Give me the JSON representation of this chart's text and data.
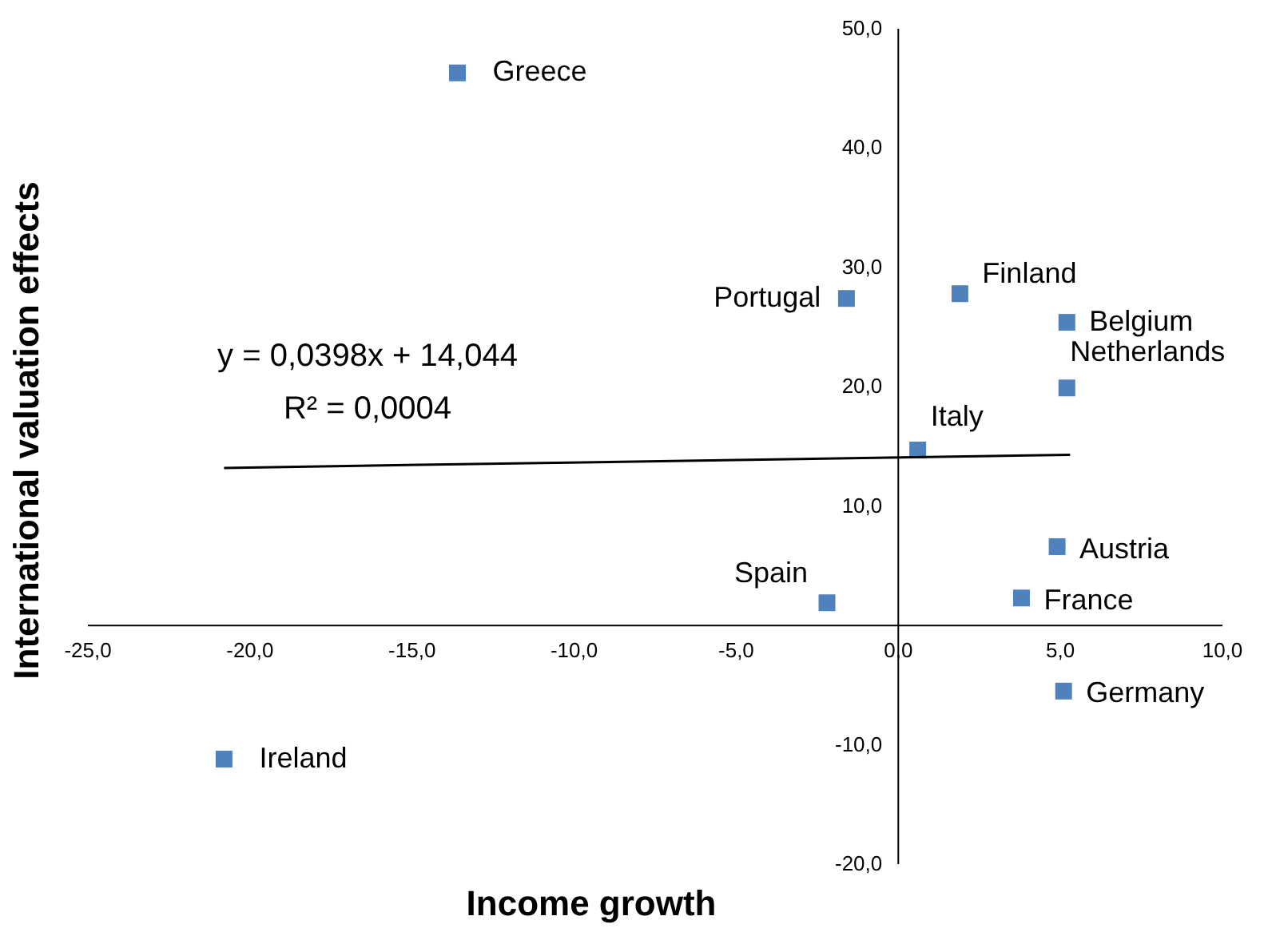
{
  "chart_data": {
    "type": "scatter",
    "xlabel": "Income growth",
    "ylabel": "International valuation effects",
    "series": [
      {
        "color": "#4f81bd",
        "marker": "square",
        "x": [
          -13.6,
          -1.6,
          1.9,
          5.2,
          5.2,
          0.6,
          4.9,
          3.8,
          -2.2,
          5.1,
          -20.8
        ],
        "values": [
          46.3,
          27.4,
          27.8,
          25.4,
          19.9,
          14.7,
          6.6,
          2.3,
          1.9,
          -5.5,
          -11.2
        ]
      },
      {
        "type": "line",
        "color": "#000000",
        "x": [
          -20.8,
          5.3
        ],
        "values": [
          13.2,
          14.3
        ]
      }
    ],
    "annotations": [
      {
        "text": "Greece",
        "x": -13.6,
        "y": 46.3
      },
      {
        "text": "Portugal",
        "x": -1.6,
        "y": 27.4
      },
      {
        "text": "Finland",
        "x": 1.9,
        "y": 27.8
      },
      {
        "text": "Belgium",
        "x": 5.2,
        "y": 25.4
      },
      {
        "text": "Netherlands",
        "x": 5.2,
        "y": 19.9
      },
      {
        "text": "Italy",
        "x": 0.6,
        "y": 14.7
      },
      {
        "text": "Austria",
        "x": 4.9,
        "y": 6.6
      },
      {
        "text": "France",
        "x": 3.8,
        "y": 2.3
      },
      {
        "text": "Spain",
        "x": -2.2,
        "y": 1.9
      },
      {
        "text": "Germany",
        "x": 5.1,
        "y": -5.5
      },
      {
        "text": "Ireland",
        "x": -20.8,
        "y": -11.2
      },
      "y = 0,0398x + 14,044",
      "R² = 0,0004"
    ],
    "xlim": [
      -25,
      10
    ],
    "xticks": [
      {
        "value": -25,
        "label": "-25,0"
      },
      {
        "value": -20,
        "label": "-20,0"
      },
      {
        "value": -15,
        "label": "-15,0"
      },
      {
        "value": -10,
        "label": "-10,0"
      },
      {
        "value": -5,
        "label": "-5,0"
      },
      {
        "value": 0,
        "label": "0,0"
      },
      {
        "value": 5,
        "label": "5,0"
      },
      {
        "value": 10,
        "label": "10,0"
      }
    ],
    "ylim": [
      -20,
      50
    ],
    "yticks": [
      {
        "value": -20,
        "label": "-20,0"
      },
      {
        "value": -10,
        "label": "-10,0"
      },
      {
        "value": 10,
        "label": "10,0"
      },
      {
        "value": 20,
        "label": "20,0"
      },
      {
        "value": 30,
        "label": "30,0"
      },
      {
        "value": 40,
        "label": "40,0"
      },
      {
        "value": 50,
        "label": "50,0"
      }
    ],
    "grid": false
  }
}
